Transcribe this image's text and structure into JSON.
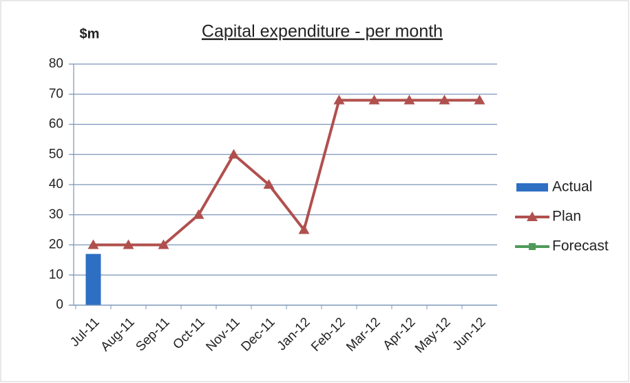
{
  "chart_data": {
    "type": "combo",
    "title": "Capital expenditure  - per month",
    "y_label": "$m",
    "categories": [
      "Jul-11",
      "Aug-11",
      "Sep-11",
      "Oct-11",
      "Nov-11",
      "Dec-11",
      "Jan-12",
      "Feb-12",
      "Mar-12",
      "Apr-12",
      "May-12",
      "Jun-12"
    ],
    "series": [
      {
        "name": "Actual",
        "type": "bar",
        "color": "#2e6fc4",
        "values": [
          17,
          null,
          null,
          null,
          null,
          null,
          null,
          null,
          null,
          null,
          null,
          null
        ]
      },
      {
        "name": "Plan",
        "type": "line",
        "marker": "triangle",
        "color": "#b0504e",
        "values": [
          20,
          20,
          20,
          30,
          50,
          40,
          25,
          68,
          68,
          68,
          68,
          68
        ]
      },
      {
        "name": "Forecast",
        "type": "line",
        "marker": "square",
        "color": "#4f9a5a",
        "values": [
          null,
          null,
          null,
          null,
          null,
          null,
          null,
          null,
          null,
          null,
          null,
          null
        ]
      }
    ],
    "ylim": [
      0,
      80
    ],
    "yticks": [
      0,
      10,
      20,
      30,
      40,
      50,
      60,
      70,
      80
    ],
    "grid": true,
    "legend": "right"
  }
}
